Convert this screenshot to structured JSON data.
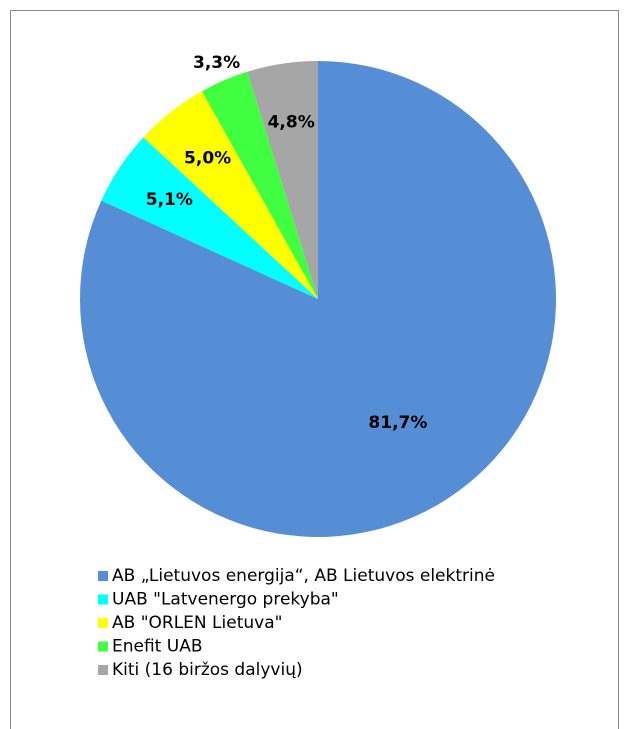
{
  "chart_data": {
    "type": "pie",
    "categories": [
      "AB „Lietuvos energija“, AB Lietuvos elektrinė",
      "UAB \"Latvenergo prekyba\"",
      "AB \"ORLEN Lietuva\"",
      "Enefit UAB",
      "Kiti (16 biržos dalyvių)"
    ],
    "values": [
      81.7,
      5.1,
      5.0,
      3.3,
      4.8
    ],
    "value_labels": [
      "81,7%",
      "5,1%",
      "5,0%",
      "3,3%",
      "4,8%"
    ],
    "colors": [
      "#558ed5",
      "#00ffff",
      "#ffff00",
      "#40ff40",
      "#a6a6a6"
    ],
    "legend": "bottom"
  }
}
